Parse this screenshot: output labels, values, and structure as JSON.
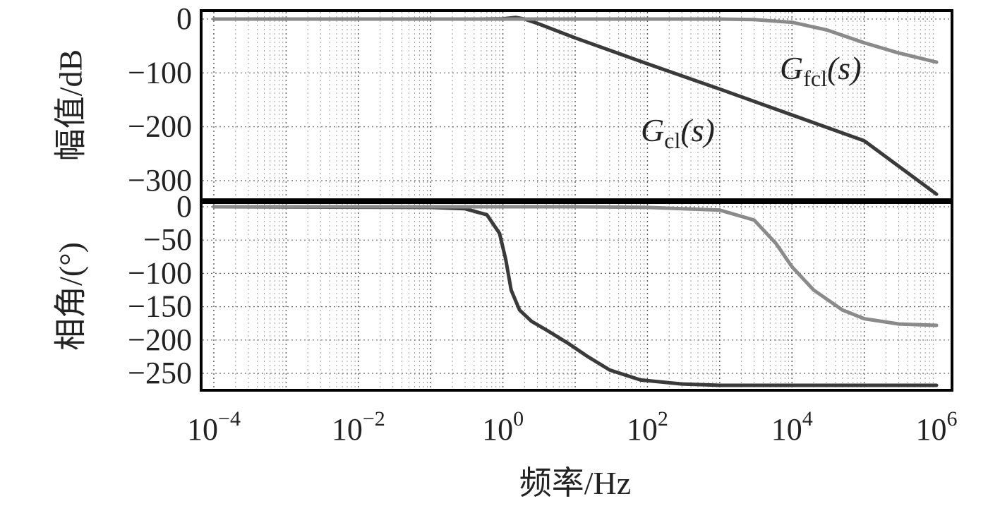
{
  "chart_data": {
    "type": "line",
    "x_scale": "log",
    "x_label": "频率/Hz",
    "x_ticks": [
      {
        "value": 0.0001,
        "base": "10",
        "exp": "−4"
      },
      {
        "value": 0.01,
        "base": "10",
        "exp": "−2"
      },
      {
        "value": 1,
        "base": "10",
        "exp": "0"
      },
      {
        "value": 100,
        "base": "10",
        "exp": "2"
      },
      {
        "value": 10000,
        "base": "10",
        "exp": "4"
      },
      {
        "value": 1000000,
        "base": "10",
        "exp": "6"
      }
    ],
    "x_range": [
      0.0001,
      1000000
    ],
    "grid": true,
    "panels": [
      {
        "id": "magnitude",
        "y_label": "幅值/dB",
        "y_range": [
          -330,
          15
        ],
        "y_ticks": [
          {
            "value": 0,
            "label": "0"
          },
          {
            "value": -100,
            "label": "−100"
          },
          {
            "value": -200,
            "label": "−200"
          },
          {
            "value": -300,
            "label": "−300"
          }
        ],
        "series": [
          {
            "name_main": "G",
            "name_sub": "cl",
            "name_arg": "(s)",
            "color": "#3a3a3a",
            "points": [
              [
                0.0001,
                0
              ],
              [
                0.1,
                0
              ],
              [
                0.5,
                0
              ],
              [
                1,
                0.5
              ],
              [
                1.5,
                3
              ],
              [
                2,
                0
              ],
              [
                3,
                -8
              ],
              [
                10,
                -35
              ],
              [
                100,
                -83
              ],
              [
                1000,
                -130
              ],
              [
                10000,
                -178
              ],
              [
                100000,
                -226
              ],
              [
                1000000,
                -325
              ]
            ]
          },
          {
            "name_main": "G",
            "name_sub": "fcl",
            "name_arg": "(s)",
            "color": "#8a8a8a",
            "points": [
              [
                0.0001,
                0
              ],
              [
                100,
                0
              ],
              [
                1000,
                0
              ],
              [
                3000,
                -1
              ],
              [
                10000,
                -6
              ],
              [
                30000,
                -20
              ],
              [
                100000,
                -44
              ],
              [
                300000,
                -63
              ],
              [
                1000000,
                -80
              ]
            ]
          }
        ]
      },
      {
        "id": "phase",
        "y_label": "相角/(°)",
        "y_range": [
          -285,
          5
        ],
        "y_ticks": [
          {
            "value": 0,
            "label": "0"
          },
          {
            "value": -50,
            "label": "−50"
          },
          {
            "value": -100,
            "label": "−100"
          },
          {
            "value": -150,
            "label": "−150"
          },
          {
            "value": -200,
            "label": "−200"
          },
          {
            "value": -250,
            "label": "−250"
          }
        ],
        "series": [
          {
            "name": "G_cl(s)",
            "color": "#3a3a3a",
            "points": [
              [
                0.0001,
                0
              ],
              [
                0.1,
                -1
              ],
              [
                0.3,
                -3
              ],
              [
                0.6,
                -12
              ],
              [
                0.9,
                -40
              ],
              [
                1.1,
                -80
              ],
              [
                1.3,
                -125
              ],
              [
                1.7,
                -155
              ],
              [
                2.5,
                -172
              ],
              [
                4,
                -185
              ],
              [
                8,
                -205
              ],
              [
                15,
                -225
              ],
              [
                30,
                -245
              ],
              [
                80,
                -260
              ],
              [
                300,
                -266
              ],
              [
                1000,
                -268
              ],
              [
                1000000,
                -268
              ]
            ]
          },
          {
            "name": "G_fcl(s)",
            "color": "#8a8a8a",
            "points": [
              [
                0.0001,
                0
              ],
              [
                10,
                0
              ],
              [
                100,
                -1
              ],
              [
                1000,
                -5
              ],
              [
                3000,
                -20
              ],
              [
                6000,
                -55
              ],
              [
                10000,
                -90
              ],
              [
                20000,
                -125
              ],
              [
                50000,
                -155
              ],
              [
                100000,
                -168
              ],
              [
                300000,
                -176
              ],
              [
                1000000,
                -178
              ]
            ]
          }
        ]
      }
    ]
  }
}
